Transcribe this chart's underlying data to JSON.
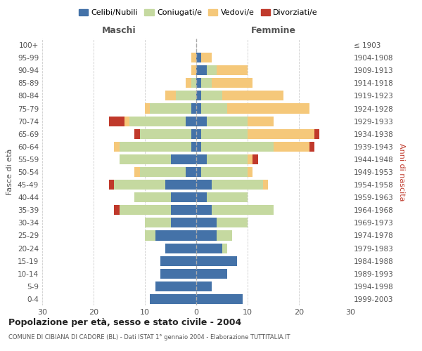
{
  "age_groups": [
    "0-4",
    "5-9",
    "10-14",
    "15-19",
    "20-24",
    "25-29",
    "30-34",
    "35-39",
    "40-44",
    "45-49",
    "50-54",
    "55-59",
    "60-64",
    "65-69",
    "70-74",
    "75-79",
    "80-84",
    "85-89",
    "90-94",
    "95-99",
    "100+"
  ],
  "birth_years": [
    "1999-2003",
    "1994-1998",
    "1989-1993",
    "1984-1988",
    "1979-1983",
    "1974-1978",
    "1969-1973",
    "1964-1968",
    "1959-1963",
    "1954-1958",
    "1949-1953",
    "1944-1948",
    "1939-1943",
    "1934-1938",
    "1929-1933",
    "1924-1928",
    "1919-1923",
    "1914-1918",
    "1909-1913",
    "1904-1908",
    "≤ 1903"
  ],
  "males": {
    "celibe": [
      9,
      8,
      7,
      7,
      6,
      8,
      5,
      5,
      5,
      6,
      2,
      5,
      1,
      1,
      2,
      1,
      0,
      0,
      0,
      0,
      0
    ],
    "coniugato": [
      0,
      0,
      0,
      0,
      0,
      2,
      5,
      10,
      7,
      10,
      9,
      10,
      14,
      10,
      11,
      8,
      4,
      1,
      0,
      0,
      0
    ],
    "vedovo": [
      0,
      0,
      0,
      0,
      0,
      0,
      0,
      0,
      0,
      0,
      1,
      0,
      1,
      0,
      1,
      1,
      2,
      1,
      1,
      1,
      0
    ],
    "divorziato": [
      0,
      0,
      0,
      0,
      0,
      0,
      0,
      1,
      0,
      1,
      0,
      0,
      0,
      1,
      3,
      0,
      0,
      0,
      0,
      0,
      0
    ]
  },
  "females": {
    "nubile": [
      9,
      3,
      6,
      8,
      5,
      4,
      4,
      3,
      2,
      3,
      1,
      2,
      1,
      1,
      2,
      1,
      1,
      1,
      2,
      1,
      0
    ],
    "coniugata": [
      0,
      0,
      0,
      0,
      1,
      3,
      6,
      12,
      8,
      10,
      9,
      8,
      14,
      9,
      8,
      5,
      4,
      2,
      2,
      0,
      0
    ],
    "vedova": [
      0,
      0,
      0,
      0,
      0,
      0,
      0,
      0,
      0,
      1,
      1,
      1,
      7,
      13,
      5,
      16,
      12,
      8,
      6,
      2,
      0
    ],
    "divorziata": [
      0,
      0,
      0,
      0,
      0,
      0,
      0,
      0,
      0,
      0,
      0,
      1,
      1,
      1,
      0,
      0,
      0,
      0,
      0,
      0,
      0
    ]
  },
  "colors": {
    "celibe": "#4472a8",
    "coniugato": "#c5d9a0",
    "vedovo": "#f5c87a",
    "divorziato": "#c0392b"
  },
  "legend_labels": [
    "Celibi/Nubili",
    "Coniugati/e",
    "Vedovi/e",
    "Divorziati/e"
  ],
  "legend_colors": [
    "#4472a8",
    "#c5d9a0",
    "#f5c87a",
    "#c0392b"
  ],
  "title": "Popolazione per età, sesso e stato civile - 2004",
  "subtitle": "COMUNE DI CIBIANA DI CADORE (BL) - Dati ISTAT 1° gennaio 2004 - Elaborazione TUTTITALIA.IT",
  "xlabel_left": "Maschi",
  "xlabel_right": "Femmine",
  "ylabel_left": "Fasce di età",
  "ylabel_right": "Anni di nascita",
  "xlim": 30,
  "background_color": "#ffffff",
  "grid_color": "#cccccc",
  "label_color": "#555555",
  "femmine_color": "#c0392b"
}
